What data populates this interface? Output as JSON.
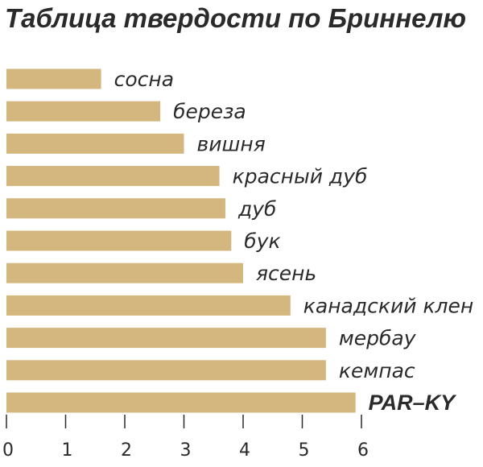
{
  "chart_data": {
    "type": "bar",
    "orientation": "horizontal",
    "title": "Таблица твердости по Бриннелю",
    "xlabel": "",
    "ylabel": "",
    "categories": [
      "сосна",
      "береза",
      "вишня",
      "красный дуб",
      "дуб",
      "бук",
      "ясень",
      "канадский клен",
      "мербау",
      "кемпас",
      "PAR–KY"
    ],
    "values": [
      1.6,
      2.6,
      3.0,
      3.6,
      3.7,
      3.8,
      4.0,
      4.8,
      5.4,
      5.4,
      5.9
    ],
    "highlight": [
      "PAR–KY"
    ],
    "xlim": [
      0,
      6
    ],
    "xticks": [
      "0",
      "1",
      "2",
      "3",
      "4",
      "5",
      "6"
    ],
    "grid": false,
    "legend": "none",
    "colors": {
      "bar": "#d4b77e",
      "text": "#2a2a2a"
    }
  }
}
